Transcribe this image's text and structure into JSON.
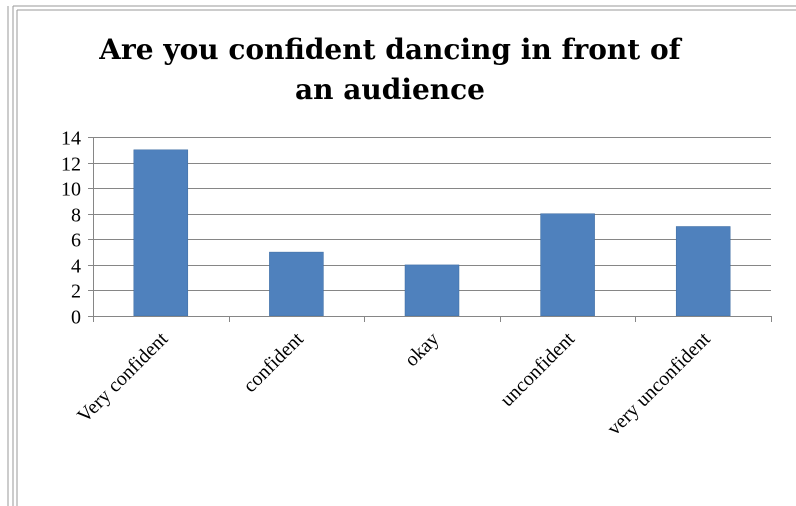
{
  "chart_data": {
    "type": "bar",
    "title": "Are you confident dancing in front of an audience",
    "categories": [
      "Very confident",
      "confident",
      "okay",
      "unconfident",
      "very unconfident"
    ],
    "values": [
      13,
      5,
      4,
      8,
      7
    ],
    "ylim": [
      0,
      14
    ],
    "yticks": [
      0,
      2,
      4,
      6,
      8,
      10,
      12,
      14
    ],
    "grid": true,
    "legend": "none",
    "colors": {
      "bar": "#4f81bd",
      "bar_edge": "#3b6aa0",
      "grid": "#868686",
      "axis": "#868686"
    }
  }
}
